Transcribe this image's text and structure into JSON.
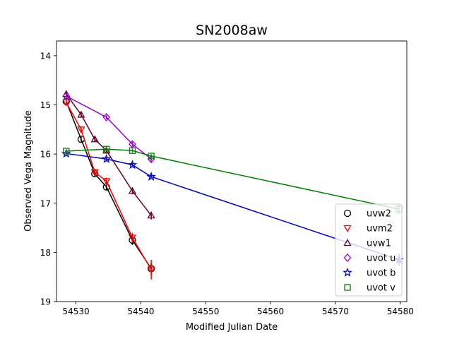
{
  "chart_data": {
    "type": "scatter",
    "title": "SN2008aw",
    "xlabel": "Modified Julian Date",
    "ylabel": "Observed Vega Magnitude",
    "xlim": [
      54527,
      54581
    ],
    "ylim": [
      19,
      13.7
    ],
    "y_inverted": true,
    "grid": false,
    "legend_position": "lower right",
    "x_ticks": [
      54530,
      54540,
      54550,
      54560,
      54570,
      54580
    ],
    "y_ticks": [
      14,
      15,
      16,
      17,
      18,
      19
    ],
    "series": [
      {
        "name": "uvw2",
        "marker": "circle",
        "color": "#000000",
        "points": [
          {
            "x": 54528.5,
            "y": 14.93,
            "err": 0.05
          },
          {
            "x": 54530.8,
            "y": 15.7,
            "err": 0.05
          },
          {
            "x": 54532.9,
            "y": 16.4,
            "err": 0.07
          },
          {
            "x": 54534.7,
            "y": 16.67,
            "err": 0.07
          },
          {
            "x": 54538.7,
            "y": 17.75,
            "err": 0.1
          },
          {
            "x": 54541.6,
            "y": 18.33,
            "err": 0.12
          }
        ]
      },
      {
        "name": "uvm2",
        "marker": "triangle-down",
        "color": "#ff0000",
        "points": [
          {
            "x": 54528.5,
            "y": 14.95,
            "err": 0.05
          },
          {
            "x": 54530.8,
            "y": 15.5,
            "err": 0.05
          },
          {
            "x": 54532.9,
            "y": 16.37,
            "err": 0.07
          },
          {
            "x": 54534.7,
            "y": 16.55,
            "err": 0.07
          },
          {
            "x": 54538.7,
            "y": 17.7,
            "err": 0.1
          },
          {
            "x": 54541.6,
            "y": 18.35,
            "err": 0.2
          }
        ]
      },
      {
        "name": "uvw1",
        "marker": "triangle-up",
        "color": "#660022",
        "points": [
          {
            "x": 54528.5,
            "y": 14.78,
            "err": 0.05
          },
          {
            "x": 54530.8,
            "y": 15.2,
            "err": 0.05
          },
          {
            "x": 54532.9,
            "y": 15.7,
            "err": 0.05
          },
          {
            "x": 54534.7,
            "y": 15.93,
            "err": 0.06
          },
          {
            "x": 54538.7,
            "y": 16.75,
            "err": 0.07
          },
          {
            "x": 54541.6,
            "y": 17.25,
            "err": 0.08
          }
        ]
      },
      {
        "name": "uvot u",
        "marker": "diamond",
        "color": "#9900cc",
        "points": [
          {
            "x": 54528.5,
            "y": 14.82,
            "err": 0.04
          },
          {
            "x": 54534.7,
            "y": 15.25,
            "err": 0.04
          },
          {
            "x": 54538.7,
            "y": 15.8,
            "err": 0.05
          },
          {
            "x": 54541.6,
            "y": 16.1,
            "err": 0.05
          }
        ]
      },
      {
        "name": "uvot b",
        "marker": "star",
        "color": "#0000cc",
        "points": [
          {
            "x": 54528.5,
            "y": 15.99,
            "err": 0.03
          },
          {
            "x": 54534.7,
            "y": 16.1,
            "err": 0.03
          },
          {
            "x": 54538.7,
            "y": 16.22,
            "err": 0.04
          },
          {
            "x": 54541.6,
            "y": 16.46,
            "err": 0.04
          },
          {
            "x": 54579.8,
            "y": 18.15,
            "err": 0.12
          }
        ]
      },
      {
        "name": "uvot v",
        "marker": "square",
        "color": "#008000",
        "points": [
          {
            "x": 54528.5,
            "y": 15.94,
            "err": 0.03
          },
          {
            "x": 54534.7,
            "y": 15.9,
            "err": 0.03
          },
          {
            "x": 54538.7,
            "y": 15.93,
            "err": 0.04
          },
          {
            "x": 54541.6,
            "y": 16.04,
            "err": 0.04
          },
          {
            "x": 54579.8,
            "y": 17.12,
            "err": 0.1
          }
        ]
      }
    ]
  }
}
